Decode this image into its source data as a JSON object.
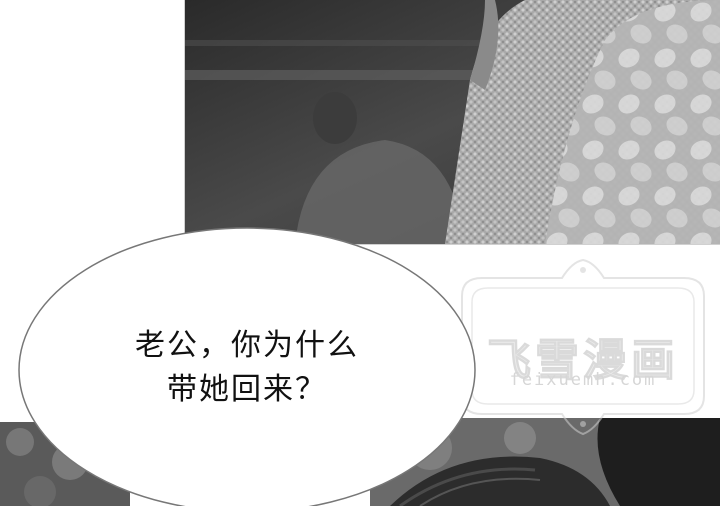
{
  "bubble": {
    "line1": "老公，你为什么",
    "line2": "带她回来？"
  },
  "watermark": {
    "title": "飞雪漫画",
    "url": "feixuemh.com"
  },
  "colors": {
    "background": "#ffffff",
    "text": "#111111",
    "watermark": "#c8c8c8"
  }
}
